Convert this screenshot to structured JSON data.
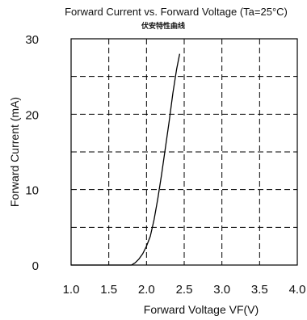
{
  "chart_data": {
    "type": "line",
    "title": "Forward Current vs. Forward Voltage (Ta=25°C)",
    "subtitle": "伏安特性曲线",
    "xlabel": "Forward Voltage  VF(V)",
    "ylabel": "Forward Current (mA)",
    "xlim": [
      1.0,
      4.0
    ],
    "ylim": [
      0,
      30
    ],
    "x_ticks": [
      "1.0",
      "1.5",
      "2.0",
      "2.5",
      "3.0",
      "3.5",
      "4.0"
    ],
    "y_ticks": [
      "0",
      "10",
      "20",
      "30"
    ],
    "grid": true,
    "series": [
      {
        "x": [
          1.0,
          1.8,
          1.85,
          1.9,
          1.95,
          2.0,
          2.05,
          2.1,
          2.15,
          2.2,
          2.25,
          2.3,
          2.35,
          2.4,
          2.44
        ],
        "y": [
          0,
          0,
          0.3,
          0.8,
          1.5,
          2.5,
          3.8,
          6.0,
          8.8,
          12.0,
          15.5,
          19.0,
          22.8,
          26.0,
          28.0
        ]
      }
    ],
    "colors": {
      "line": "#000000",
      "grid": "#000000",
      "axis": "#000000"
    }
  }
}
